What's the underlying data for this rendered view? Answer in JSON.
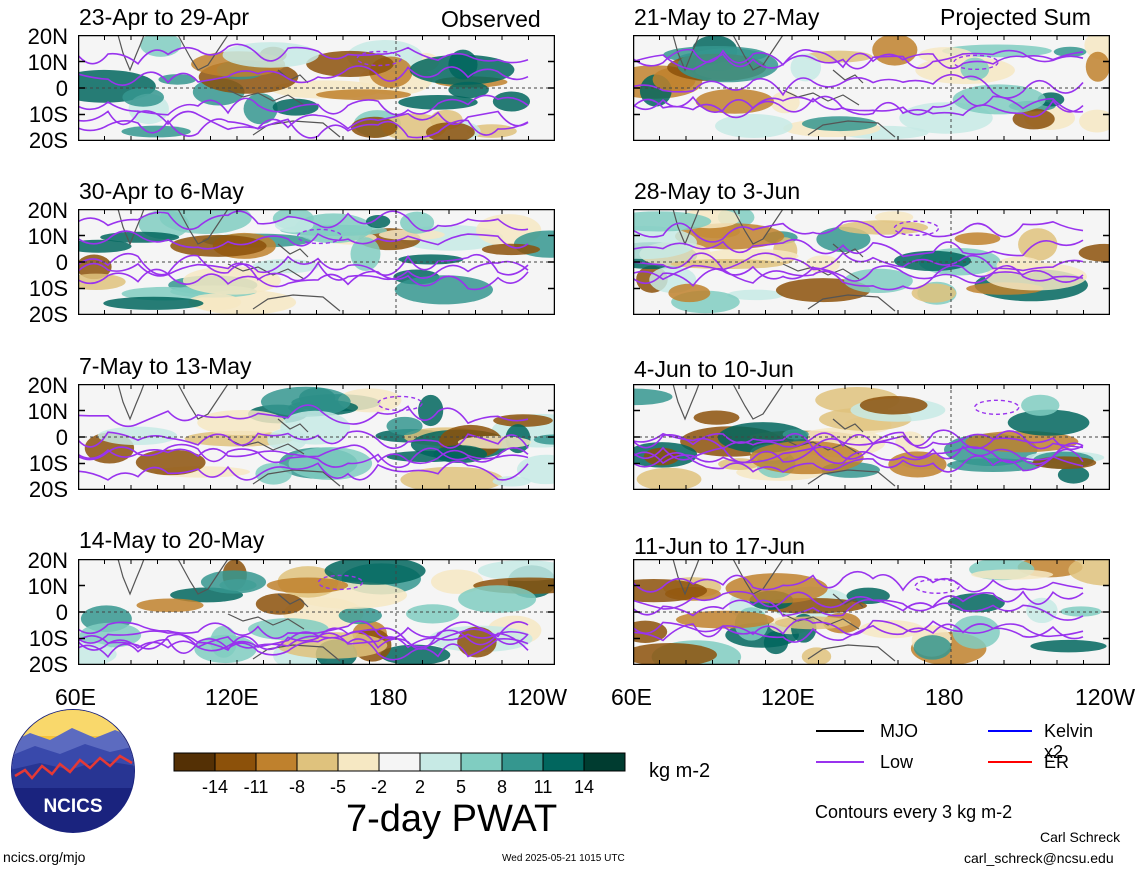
{
  "figure": {
    "variable_title": "7-day PWAT",
    "units": "kg m-2",
    "source_link": "ncics.org/mjo",
    "timestamp": "Wed 2025-05-21 1015 UTC",
    "author": "Carl Schreck",
    "email": "carl_schreck@ncsu.edu",
    "logo_text": "NCICS",
    "contour_note": "Contours every 3 kg m-2"
  },
  "columns": {
    "left_label": "Observed",
    "right_label": "Projected Sum"
  },
  "panels_left": [
    {
      "title": "23-Apr to 29-Apr"
    },
    {
      "title": "30-Apr to 6-May"
    },
    {
      "title": "7-May to 13-May"
    },
    {
      "title": "14-May to 20-May"
    }
  ],
  "panels_right": [
    {
      "title": "21-May to 27-May"
    },
    {
      "title": "28-May to 3-Jun"
    },
    {
      "title": "4-Jun to 10-Jun"
    },
    {
      "title": "11-Jun to 17-Jun"
    }
  ],
  "axes": {
    "lat_labels": [
      "20N",
      "10N",
      "0",
      "10S",
      "20S"
    ],
    "lon_labels": [
      "60E",
      "120E",
      "180",
      "120W"
    ]
  },
  "colorbar": {
    "ticks": [
      "-14",
      "-11",
      "-8",
      "-5",
      "-2",
      "2",
      "5",
      "8",
      "11",
      "14"
    ],
    "colors": [
      "#543005",
      "#8c510a",
      "#bf812d",
      "#dfc27d",
      "#f6e8c3",
      "#f5f5f5",
      "#c7eae5",
      "#80cdc1",
      "#35978f",
      "#01665e",
      "#003c30"
    ]
  },
  "legend": {
    "items": [
      {
        "label": "MJO",
        "color": "#000000"
      },
      {
        "label": "Kelvin x2",
        "color": "#0000ff"
      },
      {
        "label": "Low",
        "color": "#9933ee"
      },
      {
        "label": "ER",
        "color": "#ff0000"
      }
    ]
  }
}
